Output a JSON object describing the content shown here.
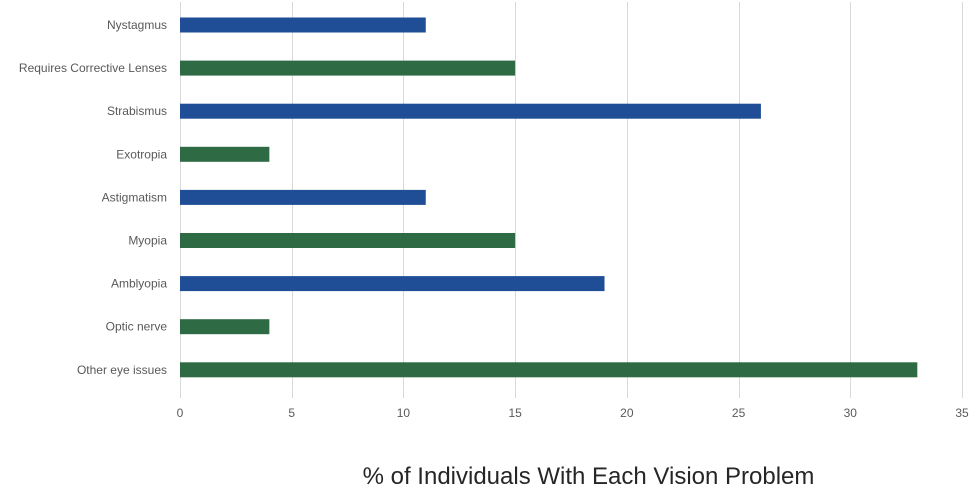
{
  "chart_data": {
    "type": "bar",
    "orientation": "horizontal",
    "categories": [
      "Nystagmus",
      "Requires Corrective Lenses",
      "Strabismus",
      "Exotropia",
      "Astigmatism",
      "Myopia",
      "Amblyopia",
      "Optic nerve",
      "Other eye issues"
    ],
    "values": [
      11,
      15,
      26,
      4,
      11,
      15,
      19,
      4,
      33
    ],
    "bar_colors": [
      "#1f4e97",
      "#2e6b45",
      "#1f4e97",
      "#2e6b45",
      "#1f4e97",
      "#2e6b45",
      "#1f4e97",
      "#2e6b45",
      "#2e6b45"
    ],
    "xlabel": "% of Individuals With Each Vision Problem",
    "xlim": [
      0,
      35
    ],
    "xticks": [
      0,
      5,
      10,
      15,
      20,
      25,
      30,
      35
    ],
    "grid": "vertical",
    "legend": "none"
  }
}
